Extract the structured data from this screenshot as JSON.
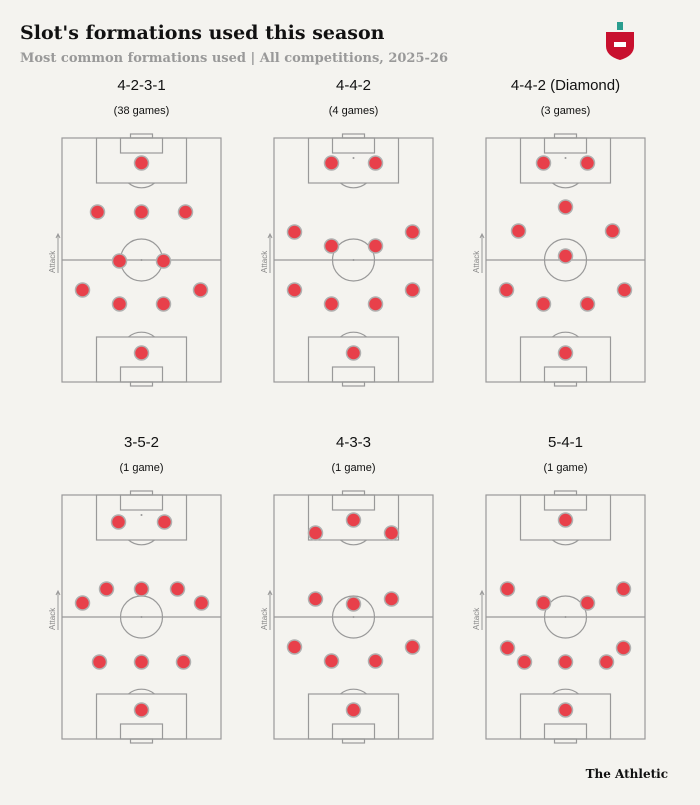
{
  "header": {
    "title": "Slot's formations used this season",
    "subtitle": "Most common formations used | All competitions, 2025-26"
  },
  "attack_label": "Attack",
  "formations": [
    {
      "name": "4-2-3-1",
      "games": "(38 games)"
    },
    {
      "name": "4-4-2",
      "games": "(4 games)"
    },
    {
      "name": "4-4-2 (Diamond)",
      "games": "(3 games)"
    },
    {
      "name": "3-5-2",
      "games": "(1 game)"
    },
    {
      "name": "4-3-3",
      "games": "(1 game)"
    },
    {
      "name": "5-4-1",
      "games": "(1 game)"
    }
  ],
  "footer": {
    "brand": "The Athletic"
  }
}
